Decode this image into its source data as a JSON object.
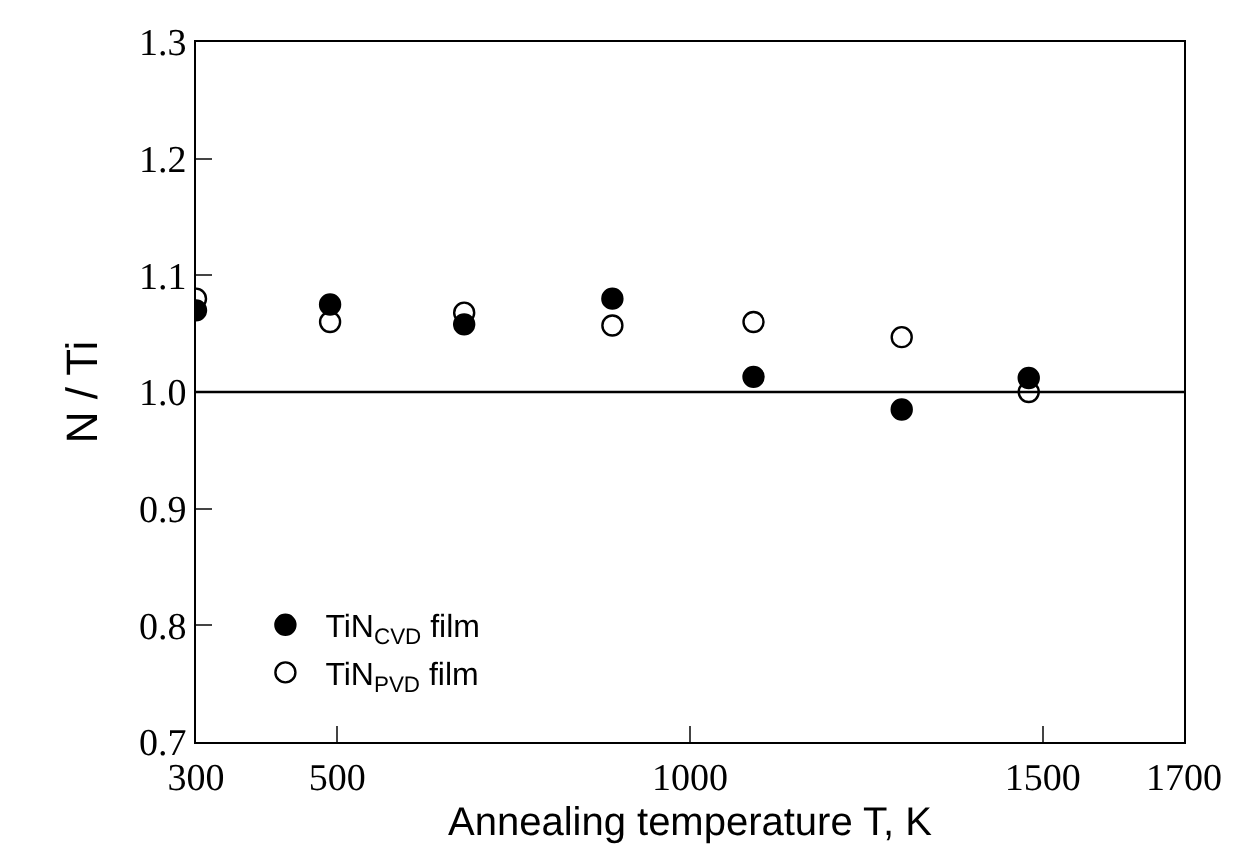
{
  "chart_data": {
    "type": "scatter",
    "xlabel": "Annealing temperature T, K",
    "ylabel": "N / Ti",
    "x": [
      300,
      490,
      680,
      890,
      1090,
      1300,
      1480
    ],
    "series": [
      {
        "name": "TiN$_{CVD}$ film",
        "color": "#000000",
        "marker": "circle",
        "values": [
          1.07,
          1.075,
          1.058,
          1.08,
          1.013,
          0.985,
          1.012
        ]
      },
      {
        "name": "TiN$_{PVD}$ film",
        "color": "#000000",
        "marker": "circle-open",
        "values": [
          1.08,
          1.06,
          1.068,
          1.057,
          1.06,
          1.047,
          1.0
        ]
      }
    ],
    "xlim": [
      300,
      1700
    ],
    "xticks": [
      300,
      500,
      1000,
      1500,
      1700
    ],
    "ylim": [
      0.7,
      1.3
    ],
    "yticks": [
      {
        "value": 0.7,
        "label": "0.7"
      },
      {
        "value": 0.8,
        "label": "0.8"
      },
      {
        "value": 0.9,
        "label": "0.9"
      },
      {
        "value": 1.0,
        "label": "1.0"
      },
      {
        "value": 1.1,
        "label": "1.1"
      },
      {
        "value": 1.2,
        "label": "1.2"
      },
      {
        "value": 1.3,
        "label": "1.3"
      }
    ],
    "ref_lines": [
      {
        "axis": "y",
        "value": 1.0,
        "color": "#000000"
      }
    ],
    "legend": "bottom left"
  }
}
